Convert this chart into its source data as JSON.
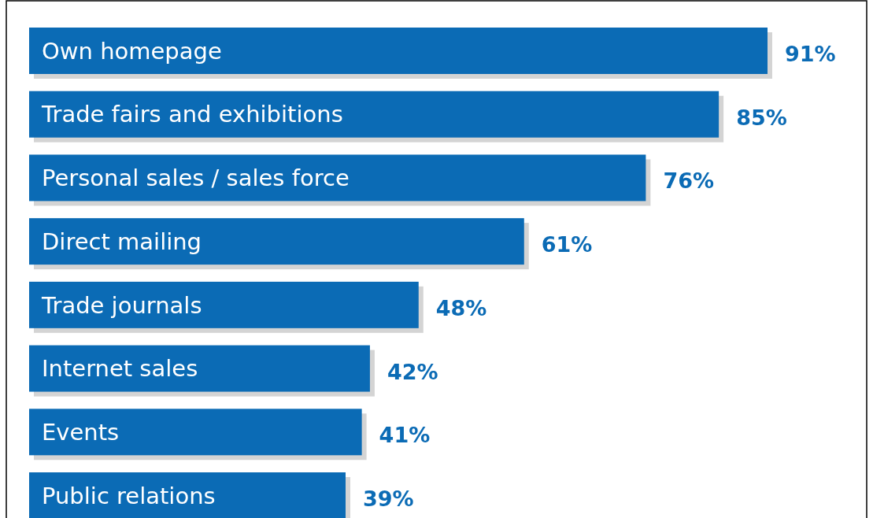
{
  "chart_data": {
    "type": "bar",
    "orientation": "horizontal",
    "categories": [
      "Own homepage",
      "Trade fairs and exhibitions",
      "Personal sales / sales force",
      "Direct mailing",
      "Trade journals",
      "Internet sales",
      "Events",
      "Public relations"
    ],
    "values": [
      91,
      85,
      76,
      61,
      48,
      42,
      41,
      39
    ],
    "value_labels": [
      "91%",
      "85%",
      "76%",
      "61%",
      "48%",
      "42%",
      "41%",
      "39%"
    ],
    "color": "#0b6bb5"
  }
}
